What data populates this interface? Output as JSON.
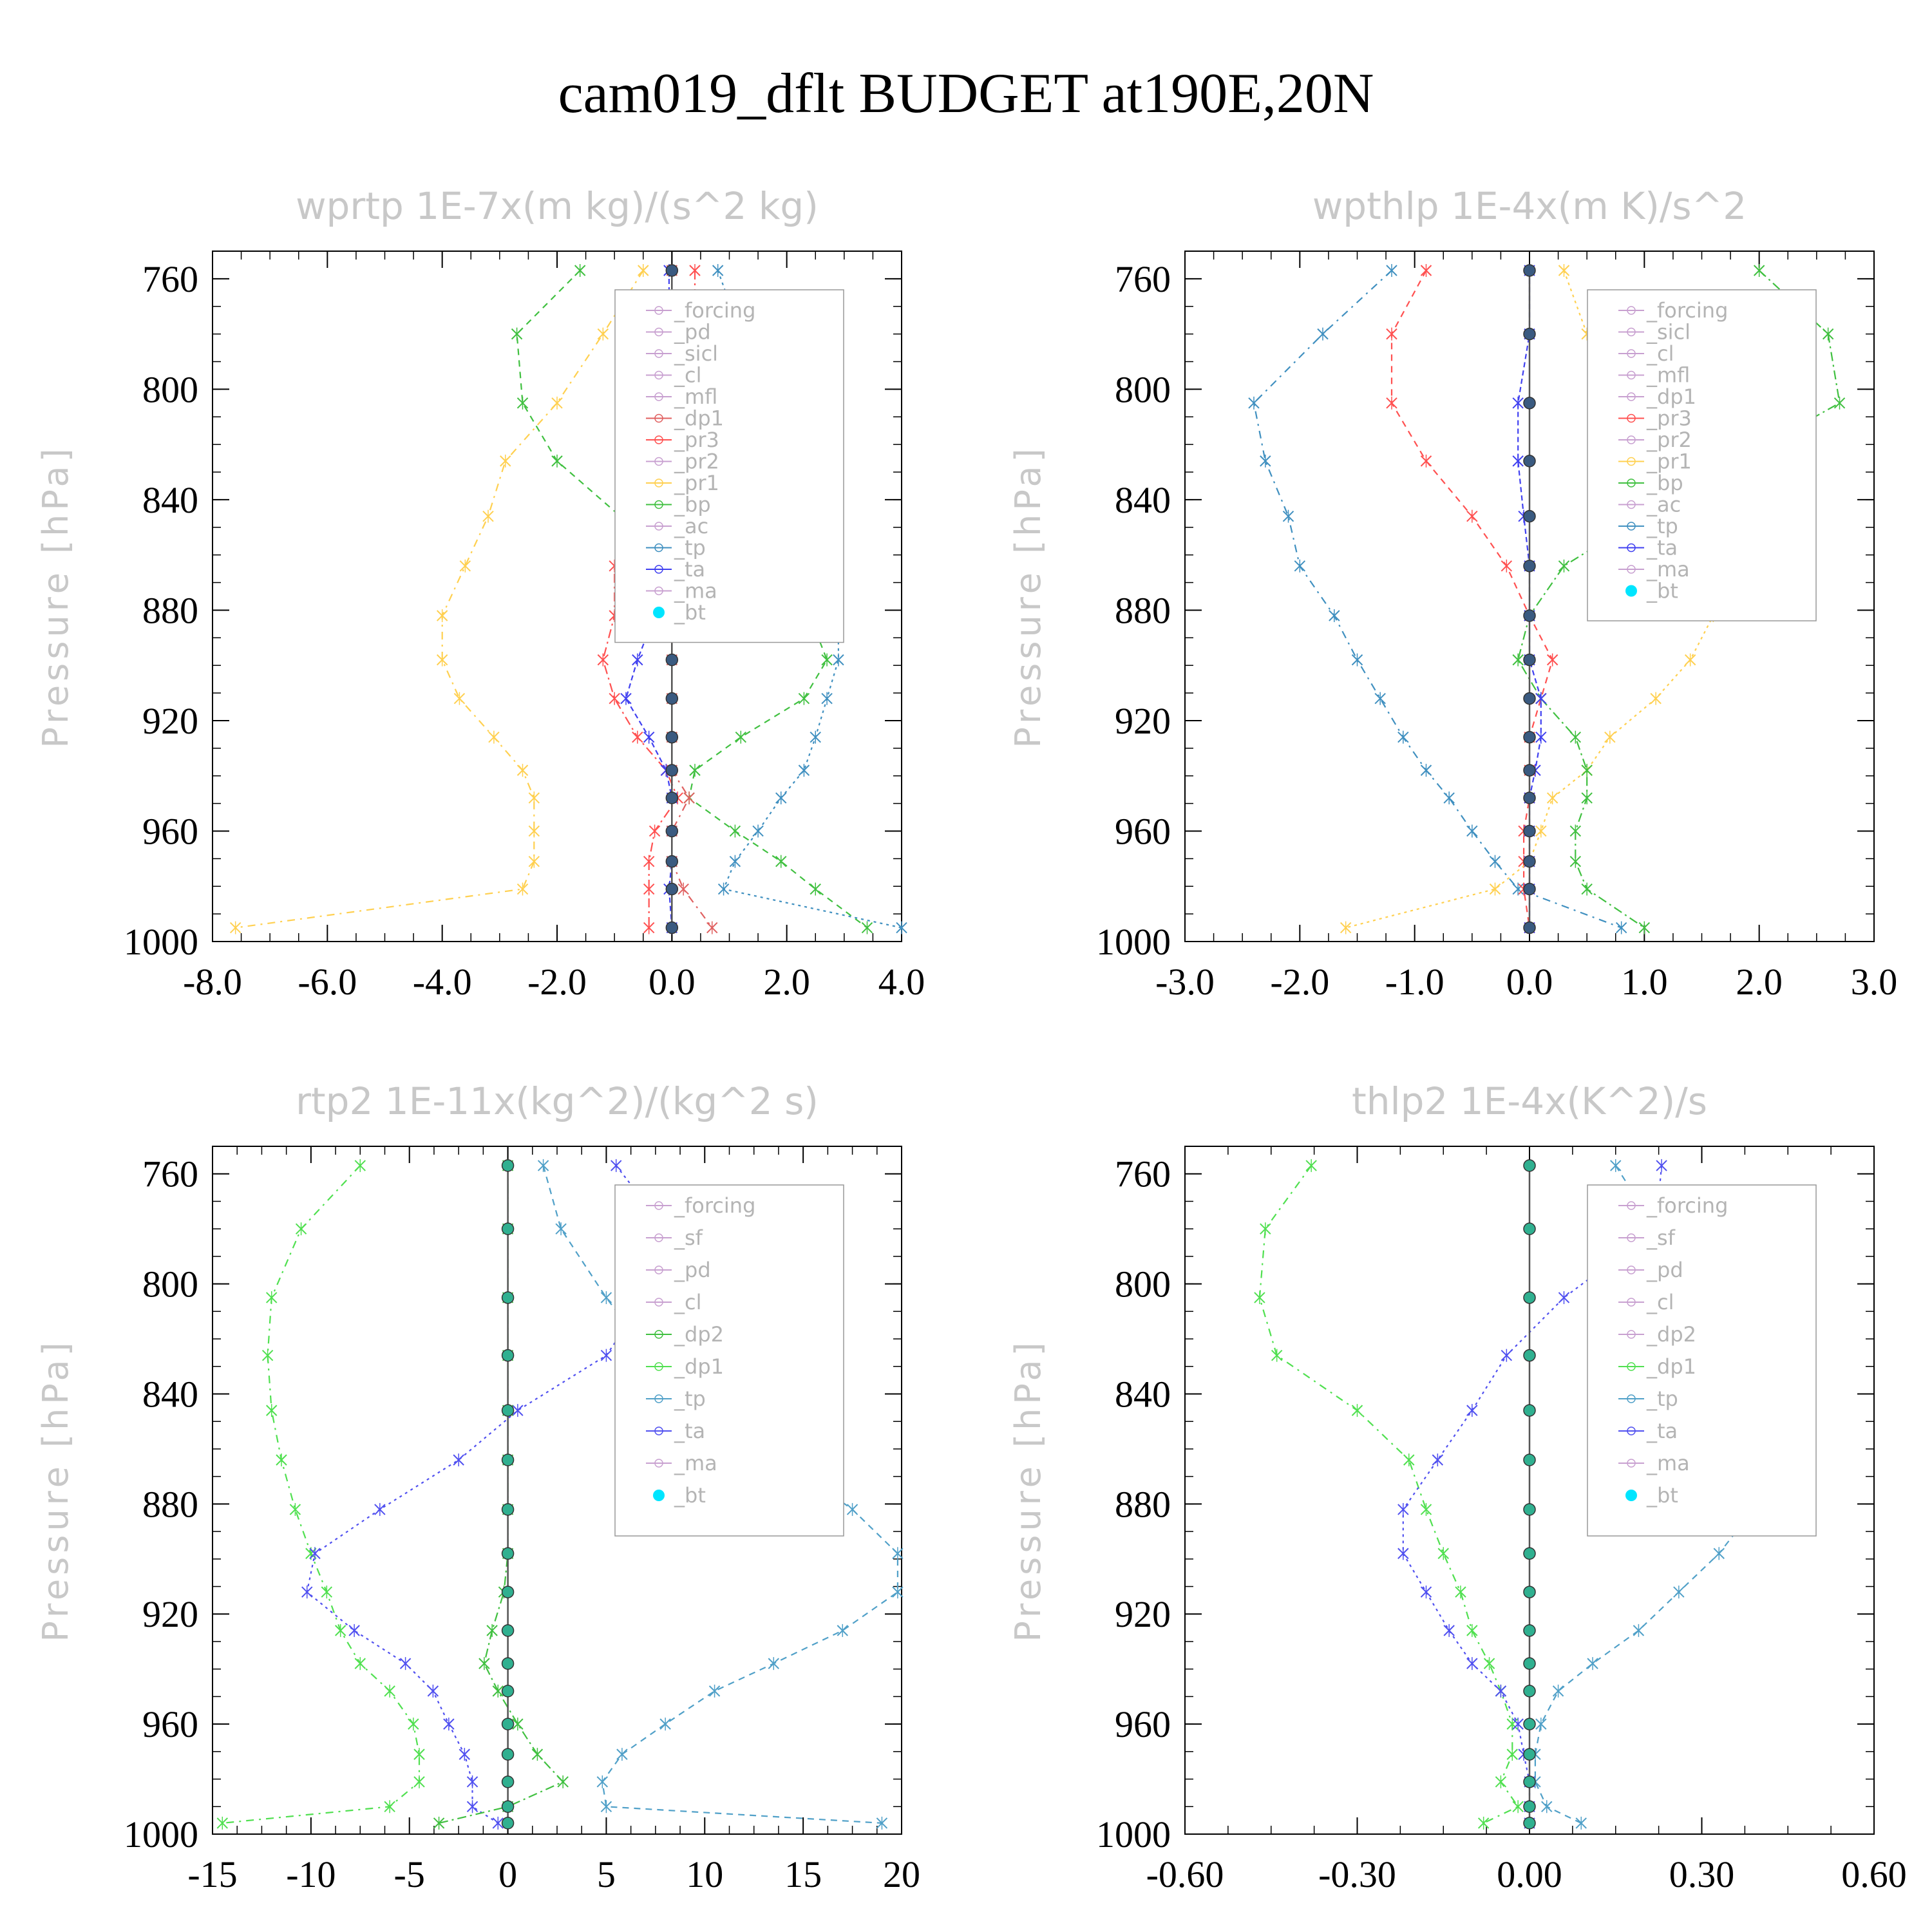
{
  "title": "cam019_dflt  BUDGET at190E,20N",
  "ylabel": "Pressure  [hPa]",
  "chart_data": [
    {
      "type": "line",
      "title": "wprtp  1E-7x(m kg)/(s^2 kg)",
      "ylabel": "Pressure  [hPa]",
      "xlim": [
        -8,
        4
      ],
      "ylim": [
        1000,
        750
      ],
      "xticks": [
        "-8.0",
        "-6.0",
        "-4.0",
        "-2.0",
        "0.0",
        "2.0",
        "4.0"
      ],
      "yticks": [
        "760",
        "800",
        "840",
        "880",
        "920",
        "960",
        "1000"
      ],
      "y": [
        757,
        780,
        805,
        826,
        846,
        864,
        882,
        898,
        912,
        926,
        938,
        948,
        960,
        971,
        981,
        995
      ],
      "legend": [
        "_forcing",
        "_pd",
        "_sicl",
        "_cl",
        "_mfl",
        "_dp1",
        "_pr3",
        "_pr2",
        "_pr1",
        "_bp",
        "_ac",
        "_tp",
        "_ta",
        "_ma",
        "_bt"
      ],
      "series": [
        {
          "name": "_pr1",
          "color": "#ffd050",
          "x": [
            -0.5,
            -1.2,
            -2.0,
            -2.9,
            -3.2,
            -3.6,
            -4.0,
            -4.0,
            -3.7,
            -3.1,
            -2.6,
            -2.4,
            -2.4,
            -2.4,
            -2.6,
            -7.6
          ]
        },
        {
          "name": "_bp",
          "color": "#40c040",
          "x": [
            -1.6,
            -2.7,
            -2.6,
            -2.0,
            -0.9,
            1.5,
            2.4,
            2.7,
            2.3,
            1.2,
            0.4,
            0.3,
            1.1,
            1.9,
            2.5,
            3.4
          ]
        },
        {
          "name": "_tp",
          "color": "#4090c0",
          "x": [
            0.8,
            1.2,
            1.8,
            2.1,
            2.4,
            2.7,
            2.9,
            2.9,
            2.7,
            2.5,
            2.3,
            1.9,
            1.5,
            1.1,
            0.9,
            4.0
          ]
        },
        {
          "name": "_pr3",
          "color": "#ff5050",
          "x": [
            0.4,
            0.4,
            0.1,
            -0.2,
            -0.6,
            -1.0,
            -1.0,
            -1.2,
            -1.0,
            -0.6,
            -0.1,
            0.1,
            -0.3,
            -0.4,
            -0.4,
            -0.4
          ]
        },
        {
          "name": "_ta",
          "color": "#4040f0",
          "x": [
            -0.05,
            -0.05,
            -0.05,
            -0.05,
            -0.05,
            -0.1,
            -0.3,
            -0.6,
            -0.8,
            -0.4,
            -0.1,
            0,
            0,
            0,
            -0.05,
            0
          ]
        },
        {
          "name": "_dp1",
          "color": "#e06060",
          "x": [
            0,
            0,
            0,
            0,
            0,
            0,
            0,
            0,
            0,
            0,
            0,
            0.3,
            0,
            0,
            0.2,
            0.7
          ]
        },
        {
          "name": "_bt",
          "color": "#3a5a80",
          "x": [
            0,
            0,
            0,
            0,
            0,
            0,
            0,
            0,
            0,
            0,
            0,
            0,
            0,
            0,
            0,
            0
          ]
        }
      ]
    },
    {
      "type": "line",
      "title": "wpthlp  1E-4x(m K)/s^2",
      "ylabel": "Pressure  [hPa]",
      "xlim": [
        -3,
        3
      ],
      "ylim": [
        1000,
        750
      ],
      "xticks": [
        "-3.0",
        "-2.0",
        "-1.0",
        "0.0",
        "1.0",
        "2.0",
        "3.0"
      ],
      "yticks": [
        "760",
        "800",
        "840",
        "880",
        "920",
        "960",
        "1000"
      ],
      "y": [
        757,
        780,
        805,
        826,
        846,
        864,
        882,
        898,
        912,
        926,
        938,
        948,
        960,
        971,
        981,
        995
      ],
      "legend": [
        "_forcing",
        "_sicl",
        "_cl",
        "_mfl",
        "_dp1",
        "_pr3",
        "_pr2",
        "_pr1",
        "_bp",
        "_ac",
        "_tp",
        "_ta",
        "_ma",
        "_bt"
      ],
      "series": [
        {
          "name": "_tp",
          "color": "#4090c0",
          "x": [
            -1.2,
            -1.8,
            -2.4,
            -2.3,
            -2.1,
            -2.0,
            -1.7,
            -1.5,
            -1.3,
            -1.1,
            -0.9,
            -0.7,
            -0.5,
            -0.3,
            -0.1,
            0.8
          ]
        },
        {
          "name": "_pr3",
          "color": "#ff5050",
          "x": [
            -0.9,
            -1.2,
            -1.2,
            -0.9,
            -0.5,
            -0.2,
            0,
            0.2,
            0.1,
            0,
            0,
            0,
            -0.05,
            -0.05,
            -0.05,
            0
          ]
        },
        {
          "name": "_pr1",
          "color": "#ffd050",
          "x": [
            0.3,
            0.5,
            0.8,
            1.1,
            1.4,
            1.6,
            1.6,
            1.4,
            1.1,
            0.7,
            0.5,
            0.2,
            0.1,
            0,
            -0.3,
            -1.6
          ]
        },
        {
          "name": "_bp",
          "color": "#40c040",
          "x": [
            2.0,
            2.6,
            2.7,
            1.8,
            1.0,
            0.3,
            0,
            -0.1,
            0.1,
            0.4,
            0.5,
            0.5,
            0.4,
            0.4,
            0.5,
            1.0
          ]
        },
        {
          "name": "_ta",
          "color": "#4040f0",
          "x": [
            0,
            0,
            -0.1,
            -0.1,
            -0.05,
            0,
            0,
            0,
            0.1,
            0.1,
            0.05,
            0,
            0,
            0,
            0,
            0
          ]
        },
        {
          "name": "_bt",
          "color": "#3a5a80",
          "x": [
            0,
            0,
            0,
            0,
            0,
            0,
            0,
            0,
            0,
            0,
            0,
            0,
            0,
            0,
            0,
            0
          ]
        }
      ]
    },
    {
      "type": "line",
      "title": "rtp2  1E-11x(kg^2)/(kg^2 s)",
      "ylabel": "Pressure  [hPa]",
      "xlim": [
        -15,
        20
      ],
      "ylim": [
        1000,
        750
      ],
      "xticks": [
        "-15",
        "-10",
        "-5",
        "0",
        "5",
        "10",
        "15",
        "20"
      ],
      "yticks": [
        "760",
        "800",
        "840",
        "880",
        "920",
        "960",
        "1000"
      ],
      "y": [
        757,
        780,
        805,
        826,
        846,
        864,
        882,
        898,
        912,
        926,
        938,
        948,
        960,
        971,
        981,
        990,
        996
      ],
      "legend": [
        "_forcing",
        "_sf",
        "_pd",
        "_cl",
        "_dp2",
        "_dp1",
        "_tp",
        "_ta",
        "_ma",
        "_bt"
      ],
      "series": [
        {
          "name": "_dp1",
          "color": "#50e050",
          "x": [
            -7.5,
            -10.5,
            -12.0,
            -12.2,
            -12.0,
            -11.5,
            -10.8,
            -10.0,
            -9.2,
            -8.5,
            -7.5,
            -6.0,
            -4.8,
            -4.5,
            -4.5,
            -6.0,
            -14.5
          ]
        },
        {
          "name": "_tp",
          "color": "#50a0c8",
          "x": [
            1.8,
            2.7,
            5.0,
            7.2,
            10.0,
            14.0,
            17.5,
            19.8,
            19.8,
            17.0,
            13.5,
            10.5,
            8.0,
            5.8,
            4.8,
            5.0,
            19.0
          ]
        },
        {
          "name": "_ta",
          "color": "#5050f0",
          "x": [
            5.5,
            8.0,
            7.0,
            5.0,
            0.5,
            -2.5,
            -6.5,
            -9.8,
            -10.2,
            -7.8,
            -5.2,
            -3.8,
            -3.0,
            -2.2,
            -1.8,
            -1.8,
            -0.5
          ]
        },
        {
          "name": "_dp2",
          "color": "#40c040",
          "x": [
            0,
            0,
            0,
            0,
            0,
            0,
            0,
            0,
            -0.2,
            -0.8,
            -1.2,
            -0.5,
            0.5,
            1.5,
            2.8,
            0,
            -3.5
          ]
        },
        {
          "name": "_bt",
          "color": "#30b090",
          "x": [
            0,
            0,
            0,
            0,
            0,
            0,
            0,
            0,
            0,
            0,
            0,
            0,
            0,
            0,
            0,
            0,
            0
          ]
        }
      ]
    },
    {
      "type": "line",
      "title": "thlp2  1E-4x(K^2)/s",
      "ylabel": "Pressure  [hPa]",
      "xlim": [
        -0.6,
        0.6
      ],
      "ylim": [
        1000,
        750
      ],
      "xticks": [
        "-0.60",
        "-0.30",
        "0.00",
        "0.30",
        "0.60"
      ],
      "yticks": [
        "760",
        "800",
        "840",
        "880",
        "920",
        "960",
        "1000"
      ],
      "y": [
        757,
        780,
        805,
        826,
        846,
        864,
        882,
        898,
        912,
        926,
        938,
        948,
        960,
        971,
        981,
        990,
        996
      ],
      "legend": [
        "_forcing",
        "_sf",
        "_pd",
        "_cl",
        "_dp2",
        "_dp1",
        "_tp",
        "_ta",
        "_ma",
        "_bt"
      ],
      "series": [
        {
          "name": "_dp1",
          "color": "#50e050",
          "x": [
            -0.38,
            -0.46,
            -0.47,
            -0.44,
            -0.3,
            -0.21,
            -0.18,
            -0.15,
            -0.12,
            -0.1,
            -0.07,
            -0.05,
            -0.03,
            -0.03,
            -0.05,
            -0.02,
            -0.08
          ]
        },
        {
          "name": "_tp",
          "color": "#50a0c8",
          "x": [
            0.15,
            0.22,
            0.41,
            0.44,
            0.44,
            0.43,
            0.39,
            0.33,
            0.26,
            0.19,
            0.11,
            0.05,
            0.02,
            0.01,
            0.01,
            0.03,
            0.09
          ]
        },
        {
          "name": "_ta",
          "color": "#5050f0",
          "x": [
            0.23,
            0.22,
            0.06,
            -0.04,
            -0.1,
            -0.16,
            -0.22,
            -0.22,
            -0.18,
            -0.14,
            -0.1,
            -0.05,
            -0.02,
            -0.01,
            0,
            0,
            0
          ]
        },
        {
          "name": "_bt",
          "color": "#30b090",
          "x": [
            0,
            0,
            0,
            0,
            0,
            0,
            0,
            0,
            0,
            0,
            0,
            0,
            0,
            0,
            0,
            0,
            0
          ]
        }
      ]
    }
  ]
}
